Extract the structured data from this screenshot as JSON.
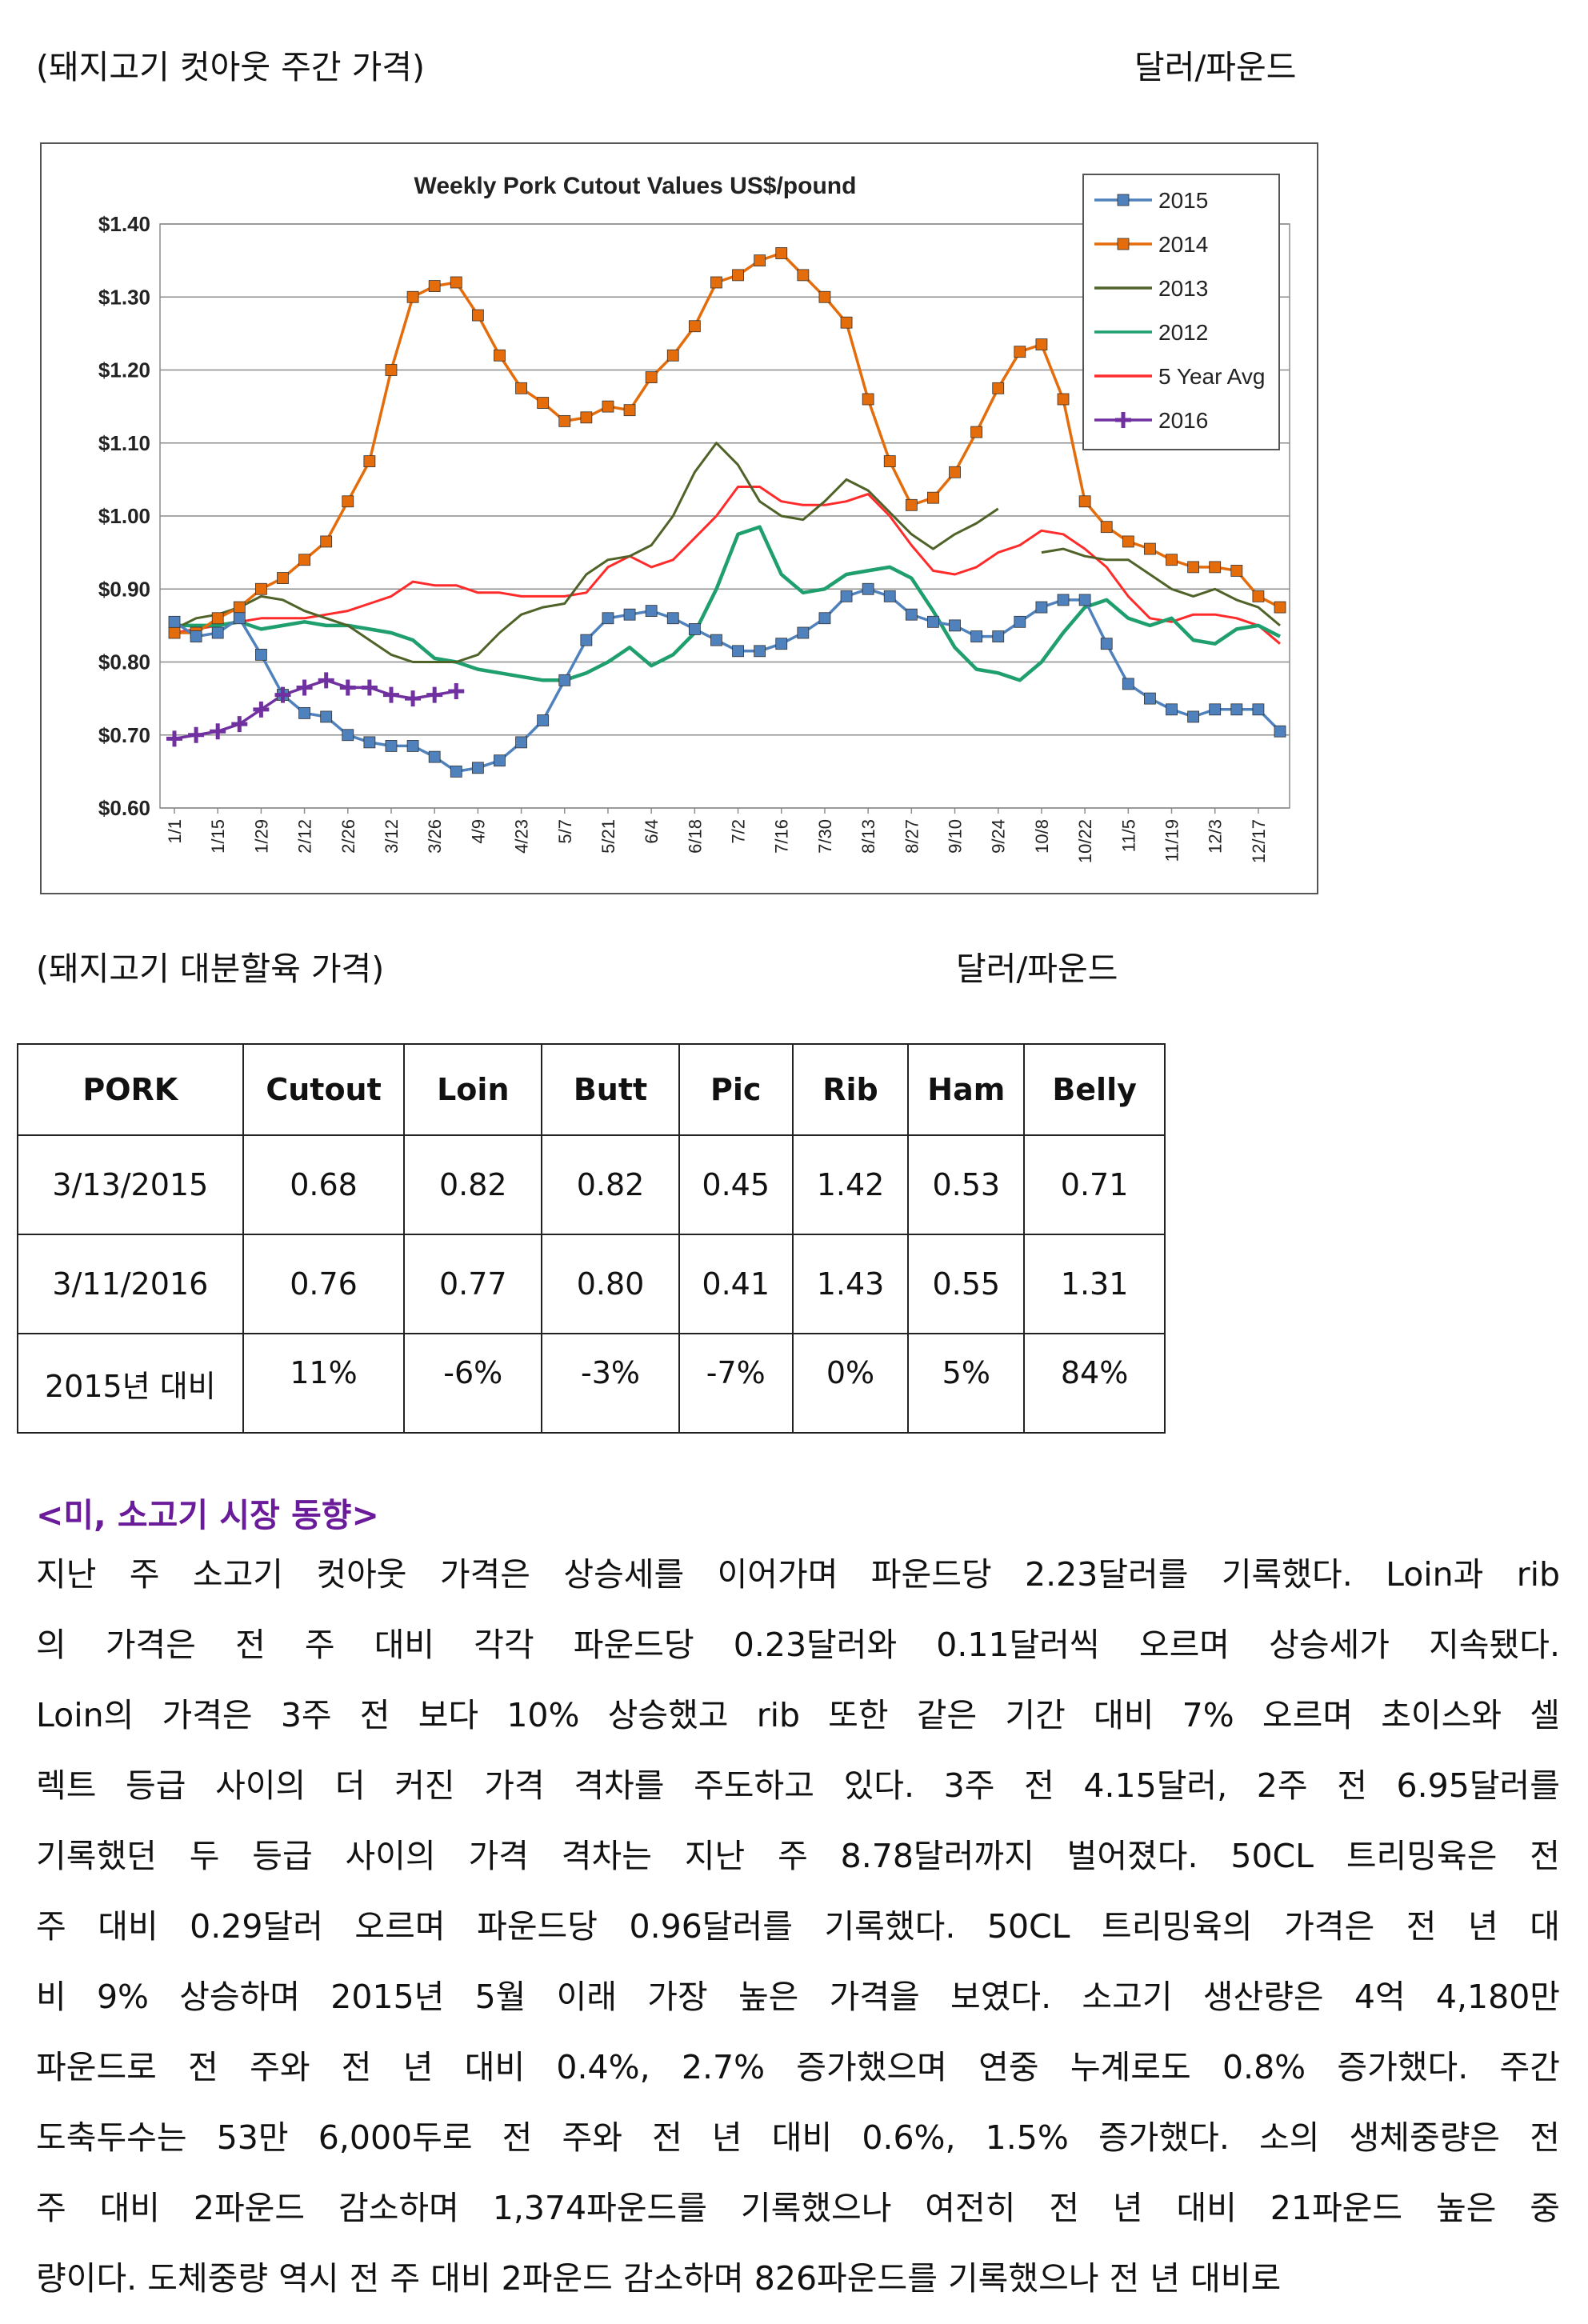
{
  "captions": {
    "cutout_title": "(돼지고기 컷아웃 주간 가격)",
    "cutout_unit": "달러/파운드",
    "primal_title": "(돼지고기 대분할육 가격)",
    "primal_unit": "달러/파운드"
  },
  "chart_data": {
    "type": "line",
    "title": "Weekly Pork Cutout Values US$/pound",
    "xlabel": "",
    "ylabel": "",
    "ylim": [
      0.6,
      1.4
    ],
    "y_ticks": [
      "$0.60",
      "$0.70",
      "$0.80",
      "$0.90",
      "$1.00",
      "$1.10",
      "$1.20",
      "$1.30",
      "$1.40"
    ],
    "x_ticks": [
      "1/1",
      "1/15",
      "1/29",
      "2/12",
      "2/26",
      "3/12",
      "3/26",
      "4/9",
      "4/23",
      "5/7",
      "5/21",
      "6/4",
      "6/18",
      "7/2",
      "7/16",
      "7/30",
      "8/13",
      "8/27",
      "9/10",
      "9/24",
      "10/8",
      "10/22",
      "11/5",
      "11/19",
      "12/3",
      "12/17"
    ],
    "x_weeks": 52,
    "grid": "horizontal",
    "legend": "top-right",
    "series": [
      {
        "name": "2015",
        "color": "#4f81bd",
        "marker": "square",
        "values": [
          0.855,
          0.835,
          0.84,
          0.86,
          0.81,
          0.755,
          0.73,
          0.725,
          0.7,
          0.69,
          0.685,
          0.685,
          0.67,
          0.65,
          0.655,
          0.665,
          0.69,
          0.72,
          0.775,
          0.83,
          0.86,
          0.865,
          0.87,
          0.86,
          0.845,
          0.83,
          0.815,
          0.815,
          0.825,
          0.84,
          0.86,
          0.89,
          0.9,
          0.89,
          0.865,
          0.855,
          0.85,
          0.835,
          0.835,
          0.855,
          0.875,
          0.885,
          0.885,
          0.825,
          0.77,
          0.75,
          0.735,
          0.725,
          0.735,
          0.735,
          0.735,
          0.705
        ]
      },
      {
        "name": "2014",
        "color": "#e46c0a",
        "marker": "square",
        "values": [
          0.84,
          0.84,
          0.86,
          0.875,
          0.9,
          0.915,
          0.94,
          0.965,
          1.02,
          1.075,
          1.2,
          1.3,
          1.315,
          1.32,
          1.275,
          1.22,
          1.175,
          1.155,
          1.13,
          1.135,
          1.15,
          1.145,
          1.19,
          1.22,
          1.26,
          1.32,
          1.33,
          1.35,
          1.36,
          1.33,
          1.3,
          1.265,
          1.16,
          1.075,
          1.015,
          1.025,
          1.06,
          1.115,
          1.175,
          1.225,
          1.235,
          1.16,
          1.02,
          0.985,
          0.965,
          0.955,
          0.94,
          0.93,
          0.93,
          0.925,
          0.89,
          0.875
        ]
      },
      {
        "name": "2013",
        "color": "#4f6228",
        "marker": "none",
        "values": [
          0.845,
          0.86,
          0.865,
          0.875,
          0.89,
          0.885,
          0.87,
          0.86,
          0.85,
          0.83,
          0.81,
          0.8,
          0.8,
          0.8,
          0.81,
          0.84,
          0.865,
          0.875,
          0.88,
          0.92,
          0.94,
          0.945,
          0.96,
          1.0,
          1.06,
          1.1,
          1.07,
          1.02,
          1.0,
          0.995,
          1.02,
          1.05,
          1.035,
          1.005,
          0.975,
          0.955,
          0.975,
          0.99,
          1.01,
          null,
          0.95,
          0.955,
          0.945,
          0.94,
          0.94,
          0.92,
          0.9,
          0.89,
          0.9,
          0.885,
          0.875,
          0.85
        ]
      },
      {
        "name": "2012",
        "color": "#1f9e6e",
        "marker": "none",
        "values": [
          0.85,
          0.85,
          0.85,
          0.855,
          0.845,
          0.85,
          0.855,
          0.85,
          0.85,
          0.845,
          0.84,
          0.83,
          0.805,
          0.8,
          0.79,
          0.785,
          0.78,
          0.775,
          0.775,
          0.785,
          0.8,
          0.82,
          0.795,
          0.81,
          0.84,
          0.9,
          0.975,
          0.985,
          0.92,
          0.895,
          0.9,
          0.92,
          0.925,
          0.93,
          0.915,
          0.87,
          0.82,
          0.79,
          0.785,
          0.775,
          0.8,
          0.84,
          0.875,
          0.885,
          0.86,
          0.85,
          0.86,
          0.83,
          0.825,
          0.845,
          0.85,
          0.835
        ]
      },
      {
        "name": "5 Year Avg",
        "color": "#ff2b2b",
        "marker": "none",
        "values": [
          0.84,
          0.845,
          0.85,
          0.855,
          0.86,
          0.86,
          0.86,
          0.865,
          0.87,
          0.88,
          0.89,
          0.91,
          0.905,
          0.905,
          0.895,
          0.895,
          0.89,
          0.89,
          0.89,
          0.895,
          0.93,
          0.945,
          0.93,
          0.94,
          0.97,
          1.0,
          1.04,
          1.04,
          1.02,
          1.015,
          1.015,
          1.02,
          1.03,
          1.0,
          0.96,
          0.925,
          0.92,
          0.93,
          0.95,
          0.96,
          0.98,
          0.975,
          0.955,
          0.93,
          0.89,
          0.86,
          0.855,
          0.865,
          0.865,
          0.86,
          0.85,
          0.825
        ]
      },
      {
        "name": "2016",
        "color": "#7030a0",
        "marker": "plus",
        "values": [
          0.695,
          0.7,
          0.705,
          0.715,
          0.735,
          0.755,
          0.765,
          0.775,
          0.765,
          0.765,
          0.755,
          0.75,
          0.755,
          0.76
        ]
      }
    ]
  },
  "table": {
    "headers": [
      "PORK",
      "Cutout",
      "Loin",
      "Butt",
      "Pic",
      "Rib",
      "Ham",
      "Belly"
    ],
    "rows": [
      {
        "label": "3/13/2015",
        "values": [
          "0.68",
          "0.82",
          "0.82",
          "0.45",
          "1.42",
          "0.53",
          "0.71"
        ]
      },
      {
        "label": "3/11/2016",
        "values": [
          "0.76",
          "0.77",
          "0.80",
          "0.41",
          "1.43",
          "0.55",
          "1.31"
        ]
      },
      {
        "label": "2015년 대비",
        "values": [
          "11%",
          "-6%",
          "-3%",
          "-7%",
          "0%",
          "5%",
          "84%"
        ]
      }
    ]
  },
  "section": {
    "heading": "<미, 소고기 시장 동향>",
    "lines": [
      "지난 주 소고기 컷아웃 가격은 상승세를 이어가며 파운드당 2.23달러를 기록했다. Loin과 rib",
      "의 가격은 전 주 대비 각각 파운드당 0.23달러와 0.11달러씩 오르며 상승세가 지속됐다.",
      "Loin의 가격은 3주 전 보다 10% 상승했고 rib 또한 같은 기간 대비 7% 오르며 초이스와 셀",
      "렉트 등급 사이의 더 커진 가격 격차를 주도하고 있다. 3주 전 4.15달러, 2주 전 6.95달러를",
      "기록했던 두 등급 사이의 가격 격차는 지난 주 8.78달러까지 벌어졌다. 50CL 트리밍육은 전",
      "주 대비 0.29달러 오르며 파운드당 0.96달러를 기록했다. 50CL 트리밍육의 가격은 전 년 대",
      "비 9% 상승하며 2015년 5월 이래 가장 높은 가격을 보였다. 소고기 생산량은 4억 4,180만",
      "파운드로 전 주와 전 년 대비 0.4%, 2.7% 증가했으며 연중 누계로도 0.8% 증가했다. 주간",
      "도축두수는 53만 6,000두로 전 주와 전 년 대비 0.6%, 1.5% 증가했다. 소의 생체중량은 전",
      "주 대비 2파운드 감소하며 1,374파운드를 기록했으나 여전히 전 년 대비 21파운드 높은 중",
      "량이다. 도체중량 역시 전 주 대비 2파운드 감소하며 826파운드를 기록했으나 전 년 대비로"
    ]
  }
}
